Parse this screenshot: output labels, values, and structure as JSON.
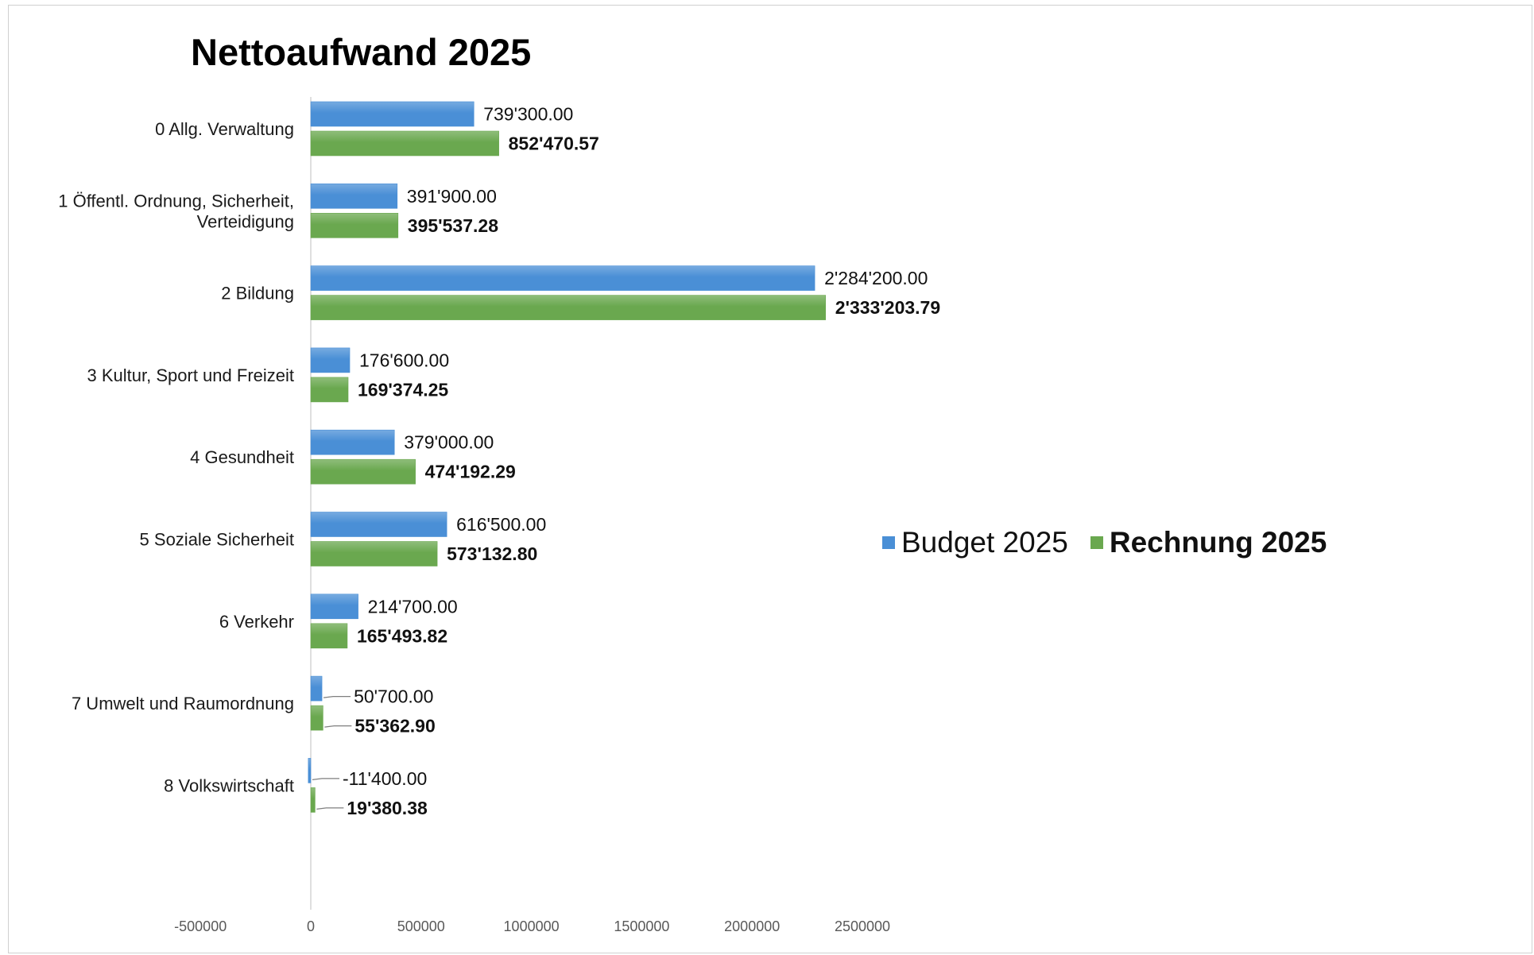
{
  "chart_data": {
    "type": "bar",
    "orientation": "horizontal",
    "title": "Nettoaufwand 2025",
    "categories": [
      "0  Allg. Verwaltung",
      "1  Öffentl. Ordnung, Sicherheit, Verteidigung",
      "2  Bildung",
      "3  Kultur, Sport und Freizeit",
      "4  Gesundheit",
      "5  Soziale Sicherheit",
      "6  Verkehr",
      "7  Umwelt und Raumordnung",
      "8  Volkswirtschaft"
    ],
    "category_lines": [
      [
        "0  Allg. Verwaltung"
      ],
      [
        "1  Öffentl. Ordnung, Sicherheit,",
        "Verteidigung"
      ],
      [
        "2  Bildung"
      ],
      [
        "3  Kultur, Sport und Freizeit"
      ],
      [
        "4  Gesundheit"
      ],
      [
        "5  Soziale Sicherheit"
      ],
      [
        "6  Verkehr"
      ],
      [
        "7  Umwelt und Raumordnung"
      ],
      [
        "8  Volkswirtschaft"
      ]
    ],
    "series": [
      {
        "name": "Budget 2025",
        "color": "#4a8fd6",
        "values": [
          739300.0,
          391900.0,
          2284200.0,
          176600.0,
          379000.0,
          616500.0,
          214700.0,
          50700.0,
          -11400.0
        ],
        "labels": [
          "739'300.00",
          "391'900.00",
          "2'284'200.00",
          "176'600.00",
          "379'000.00",
          "616'500.00",
          "214'700.00",
          "50'700.00",
          "-11'400.00"
        ]
      },
      {
        "name": "Rechnung 2025",
        "color": "#6aa84f",
        "values": [
          852470.57,
          395537.28,
          2333203.79,
          169374.25,
          474192.29,
          573132.8,
          165493.82,
          55362.9,
          19380.38
        ],
        "labels": [
          "852'470.57",
          "395'537.28",
          "2'333'203.79",
          "169'374.25",
          "474'192.29",
          "573'132.80",
          "165'493.82",
          "55'362.90",
          "19'380.38"
        ]
      }
    ],
    "xlim": [
      -500000,
      2500000
    ],
    "xticks": [
      "-500000",
      "0",
      "500000",
      "1000000",
      "1500000",
      "2000000",
      "2500000"
    ],
    "grid": false,
    "legend_position": "center-right"
  }
}
